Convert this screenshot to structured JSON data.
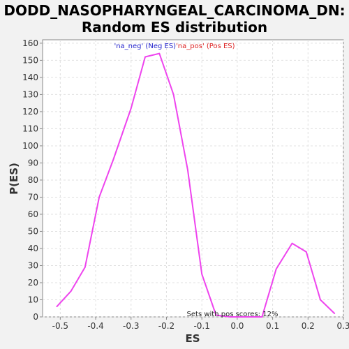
{
  "chart_data": {
    "type": "line",
    "title_line1": "DODD_NASOPHARYNGEAL_CARCINOMA_DN:",
    "title_line2": "Random ES distribution",
    "xlabel": "ES",
    "ylabel": "P(ES)",
    "xlim": [
      -0.55,
      0.3
    ],
    "ylim": [
      0,
      162
    ],
    "xticks": [
      -0.5,
      -0.4,
      -0.3,
      -0.2,
      -0.1,
      0.0,
      0.1,
      0.2,
      0.3
    ],
    "xtick_labels": [
      "-0.5",
      "-0.4",
      "-0.3",
      "-0.2",
      "-0.1",
      "0.0",
      "0.1",
      "0.2",
      "0.3"
    ],
    "yticks": [
      0,
      10,
      20,
      30,
      40,
      50,
      60,
      70,
      80,
      90,
      100,
      110,
      120,
      130,
      140,
      150,
      160
    ],
    "grid": true,
    "legend": {
      "placement": "top-center",
      "entries": [
        {
          "label": "'na_neg' (Neg ES)",
          "color": "#2222cc"
        },
        {
          "label": "'na_pos' (Pos ES)",
          "color": "#dd2222"
        }
      ]
    },
    "annotation": "Sets with pos scores: 12%",
    "series": [
      {
        "color": "#ee44ee",
        "x": [
          -0.51,
          -0.47,
          -0.43,
          -0.39,
          -0.35,
          -0.3,
          -0.26,
          -0.22,
          -0.18,
          -0.14,
          -0.1,
          -0.06,
          -0.02,
          0.03,
          0.07,
          0.11,
          0.155,
          0.195,
          0.235,
          0.275
        ],
        "y": [
          6,
          15,
          29,
          70,
          92,
          122,
          152,
          154,
          130,
          86,
          25,
          1,
          0,
          0,
          0,
          28,
          43,
          38,
          10,
          2
        ]
      }
    ]
  }
}
